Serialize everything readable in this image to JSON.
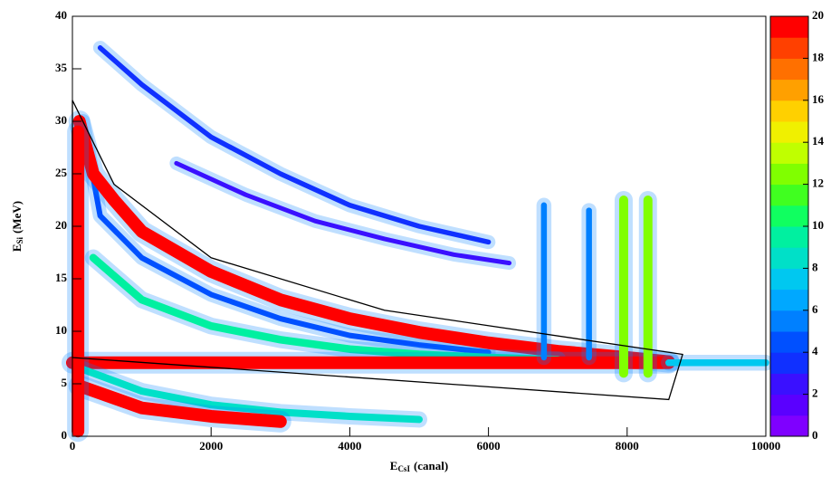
{
  "chart_data": {
    "type": "density-ridges",
    "x_label": {
      "main": "E",
      "sub": "CsI",
      "unit": "(canal)"
    },
    "y_label": {
      "main": "E",
      "sub": "Si",
      "unit": "(MeV)"
    },
    "xlim": [
      0,
      10000
    ],
    "xticks": [
      0,
      2000,
      4000,
      6000,
      8000,
      10000
    ],
    "ylim": [
      0,
      40
    ],
    "yticks": [
      0,
      5,
      10,
      15,
      20,
      25,
      30,
      35,
      40
    ],
    "zlim": [
      0,
      20
    ],
    "zticks": [
      0,
      2,
      4,
      6,
      8,
      10,
      12,
      14,
      16,
      18,
      20
    ],
    "colormap": [
      "#7f00ff",
      "#5a00ff",
      "#3a10ff",
      "#1030ff",
      "#0050ff",
      "#0080ff",
      "#00a8ff",
      "#00c8f0",
      "#00e0c8",
      "#00f0a0",
      "#10ff60",
      "#40ff20",
      "#80ff00",
      "#c0ff00",
      "#f0f000",
      "#ffd000",
      "#ffa000",
      "#ff7000",
      "#ff4000",
      "#ff0000"
    ],
    "series": [
      {
        "count": 3,
        "x": [
          400,
          1000,
          2000,
          3000,
          4000,
          5000,
          6000
        ],
        "y": [
          37,
          33.5,
          28.5,
          25,
          22,
          20,
          18.5
        ]
      },
      {
        "count": 2,
        "x": [
          1500,
          2500,
          3500,
          4500,
          5500,
          6300
        ],
        "y": [
          26,
          23,
          20.5,
          18.8,
          17.3,
          16.5
        ]
      },
      {
        "count": 4,
        "x": [
          150,
          400,
          1000,
          2000,
          3000,
          4000,
          5000,
          6000
        ],
        "y": [
          30,
          21,
          17,
          13.5,
          11.2,
          9.6,
          8.7,
          8
        ]
      },
      {
        "count": 20,
        "x": [
          100,
          300,
          600,
          1000,
          2000,
          3000,
          4000,
          5000,
          6000,
          7000,
          8000,
          8600
        ],
        "y": [
          30,
          25,
          22.5,
          19.5,
          15.7,
          13,
          11.2,
          9.9,
          8.9,
          8.1,
          7.5,
          7.1
        ]
      },
      {
        "count": 9,
        "x": [
          300,
          1000,
          2000,
          3000,
          4000,
          5000,
          6000,
          7000
        ],
        "y": [
          17,
          13,
          10.5,
          9.2,
          8.3,
          7.8,
          7.5,
          7.3
        ]
      },
      {
        "count": 20,
        "x": [
          0,
          2000,
          4000,
          6000,
          8000,
          8600
        ],
        "y": [
          7,
          7,
          7,
          7,
          7,
          7
        ]
      },
      {
        "count": 7,
        "x": [
          8600,
          10000
        ],
        "y": [
          7,
          7
        ]
      },
      {
        "count": 8,
        "x": [
          100,
          1000,
          2000,
          3000,
          4000,
          5000
        ],
        "y": [
          6.5,
          4.3,
          3,
          2.3,
          1.9,
          1.6
        ]
      },
      {
        "count": 20,
        "x": [
          100,
          1000,
          2000,
          3000
        ],
        "y": [
          4.8,
          2.7,
          1.9,
          1.4
        ]
      },
      {
        "count": 20,
        "x": [
          80,
          80
        ],
        "y": [
          0.5,
          29
        ]
      },
      {
        "count": 5,
        "x": [
          6800,
          6800
        ],
        "y": [
          7.5,
          22
        ]
      },
      {
        "count": 5,
        "x": [
          7450,
          7450
        ],
        "y": [
          7.5,
          21.5
        ]
      },
      {
        "count": 12,
        "x": [
          7950,
          7950
        ],
        "y": [
          6,
          22.5
        ]
      },
      {
        "count": 12,
        "x": [
          8300,
          8300
        ],
        "y": [
          6,
          22.5
        ]
      }
    ],
    "gate": {
      "color": "#000000",
      "x": [
        0,
        600,
        2000,
        4500,
        8800,
        8600,
        0,
        0
      ],
      "y": [
        32,
        24,
        17,
        12,
        7.8,
        3.5,
        7.5,
        32
      ]
    }
  }
}
